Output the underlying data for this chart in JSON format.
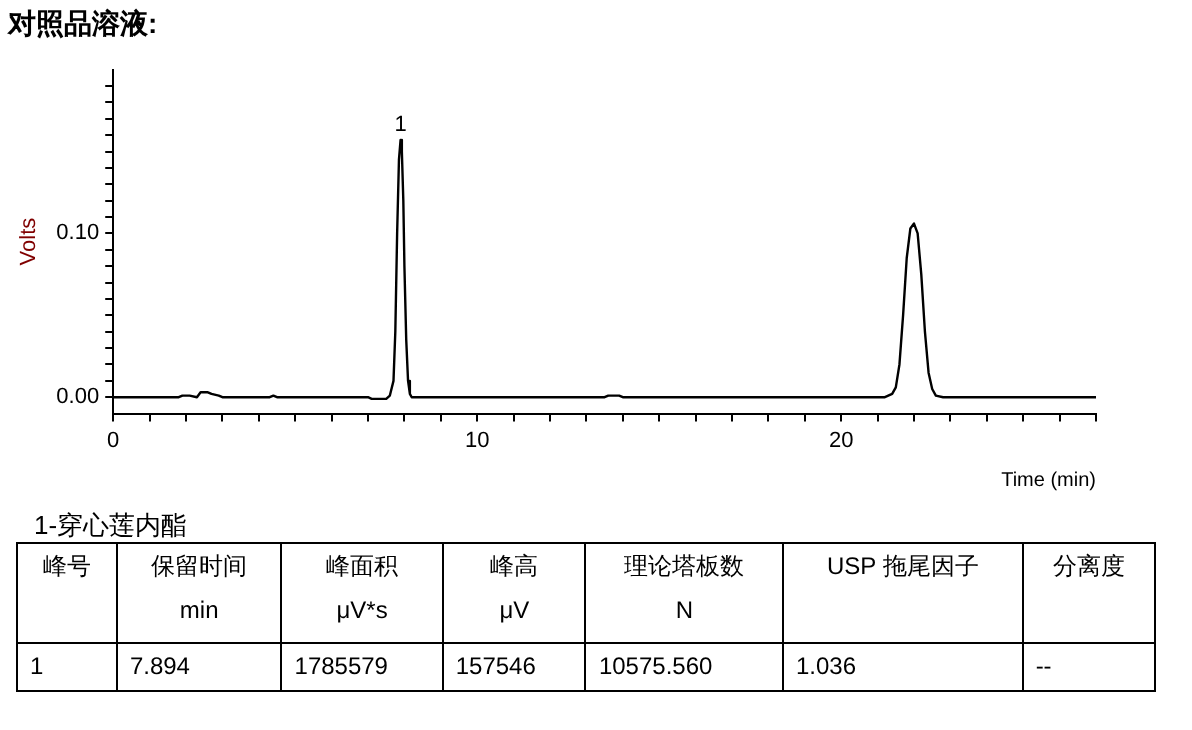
{
  "chart_data": {
    "type": "line",
    "title": "对照品溶液:",
    "xlabel": "Time (min)",
    "ylabel": "Volts",
    "x": [
      0,
      1.8,
      1.9,
      2.0,
      2.1,
      2.3,
      2.4,
      2.6,
      2.7,
      2.9,
      3.0,
      4.3,
      4.4,
      4.5,
      7.0,
      7.1,
      7.5,
      7.6,
      7.7,
      7.75,
      7.8,
      7.85,
      7.894,
      7.93,
      7.97,
      8.0,
      8.05,
      8.1,
      8.15,
      8.2,
      8.7,
      13.5,
      13.6,
      13.9,
      14.0,
      21.2,
      21.4,
      21.5,
      21.6,
      21.7,
      21.8,
      21.9,
      22.0,
      22.1,
      22.2,
      22.3,
      22.4,
      22.5,
      22.6,
      22.8,
      27
    ],
    "series": [
      {
        "color": "#000000",
        "values": [
          0,
          0,
          0.001,
          0.001,
          0.001,
          0,
          0.003,
          0.003,
          0.002,
          0.001,
          0,
          0,
          0.001,
          0,
          0,
          -0.001,
          -0.001,
          0.001,
          0.01,
          0.04,
          0.1,
          0.145,
          0.157,
          0.15,
          0.12,
          0.08,
          0.035,
          0.01,
          0.002,
          0,
          0,
          0,
          0.001,
          0.001,
          0,
          0,
          0.002,
          0.006,
          0.02,
          0.05,
          0.085,
          0.103,
          0.106,
          0.1,
          0.075,
          0.04,
          0.015,
          0.005,
          0.001,
          0,
          0
        ]
      }
    ],
    "xlim": [
      0,
      27
    ],
    "ylim": [
      -0.01,
      0.2
    ],
    "xticks": [
      0,
      {
        "value": 1,
        "label": null
      },
      {
        "value": 2,
        "label": null
      },
      {
        "value": 3,
        "label": null
      },
      {
        "value": 4,
        "label": null
      },
      {
        "value": 5,
        "label": null
      },
      {
        "value": 6,
        "label": null
      },
      {
        "value": 7,
        "label": null
      },
      {
        "value": 8,
        "label": null
      },
      {
        "value": 9,
        "label": null
      },
      10,
      {
        "value": 11,
        "label": null
      },
      {
        "value": 12,
        "label": null
      },
      {
        "value": 13,
        "label": null
      },
      {
        "value": 14,
        "label": null
      },
      {
        "value": 15,
        "label": null
      },
      {
        "value": 16,
        "label": null
      },
      {
        "value": 17,
        "label": null
      },
      {
        "value": 18,
        "label": null
      },
      {
        "value": 19,
        "label": null
      },
      20,
      {
        "value": 21,
        "label": null
      },
      {
        "value": 22,
        "label": null
      },
      {
        "value": 23,
        "label": null
      },
      {
        "value": 24,
        "label": null
      },
      {
        "value": 25,
        "label": null
      },
      {
        "value": 26,
        "label": null
      },
      {
        "value": 27,
        "label": null
      }
    ],
    "yticks": [
      {
        "value": 0,
        "label": "0.00"
      },
      {
        "value": 0.01,
        "label": null
      },
      {
        "value": 0.02,
        "label": null
      },
      {
        "value": 0.03,
        "label": null
      },
      {
        "value": 0.04,
        "label": null
      },
      {
        "value": 0.05,
        "label": null
      },
      {
        "value": 0.06,
        "label": null
      },
      {
        "value": 0.07,
        "label": null
      },
      {
        "value": 0.08,
        "label": null
      },
      {
        "value": 0.09,
        "label": null
      },
      {
        "value": 0.1,
        "label": "0.10"
      },
      {
        "value": 0.11,
        "label": null
      },
      {
        "value": 0.12,
        "label": null
      },
      {
        "value": 0.13,
        "label": null
      },
      {
        "value": 0.14,
        "label": null
      },
      {
        "value": 0.15,
        "label": null
      },
      {
        "value": 0.16,
        "label": null
      },
      {
        "value": 0.17,
        "label": null
      },
      {
        "value": 0.18,
        "label": null
      },
      {
        "value": 0.19,
        "label": null
      }
    ],
    "grid": false,
    "legend": false,
    "marker": "none",
    "line_style": "solid",
    "annotations": [
      {
        "text": "1",
        "x": 7.894,
        "y": 0.157
      },
      "1-穿心莲内酯",
      "峰号",
      "保留时间\nmin",
      "峰面积\nμV*s",
      "峰高\nμV",
      "理论塔板数\nN",
      "USP 拖尾因子",
      "分离度",
      "1",
      "7.894",
      "1785579",
      "157546",
      "10575.560",
      "1.036",
      "--"
    ]
  }
}
